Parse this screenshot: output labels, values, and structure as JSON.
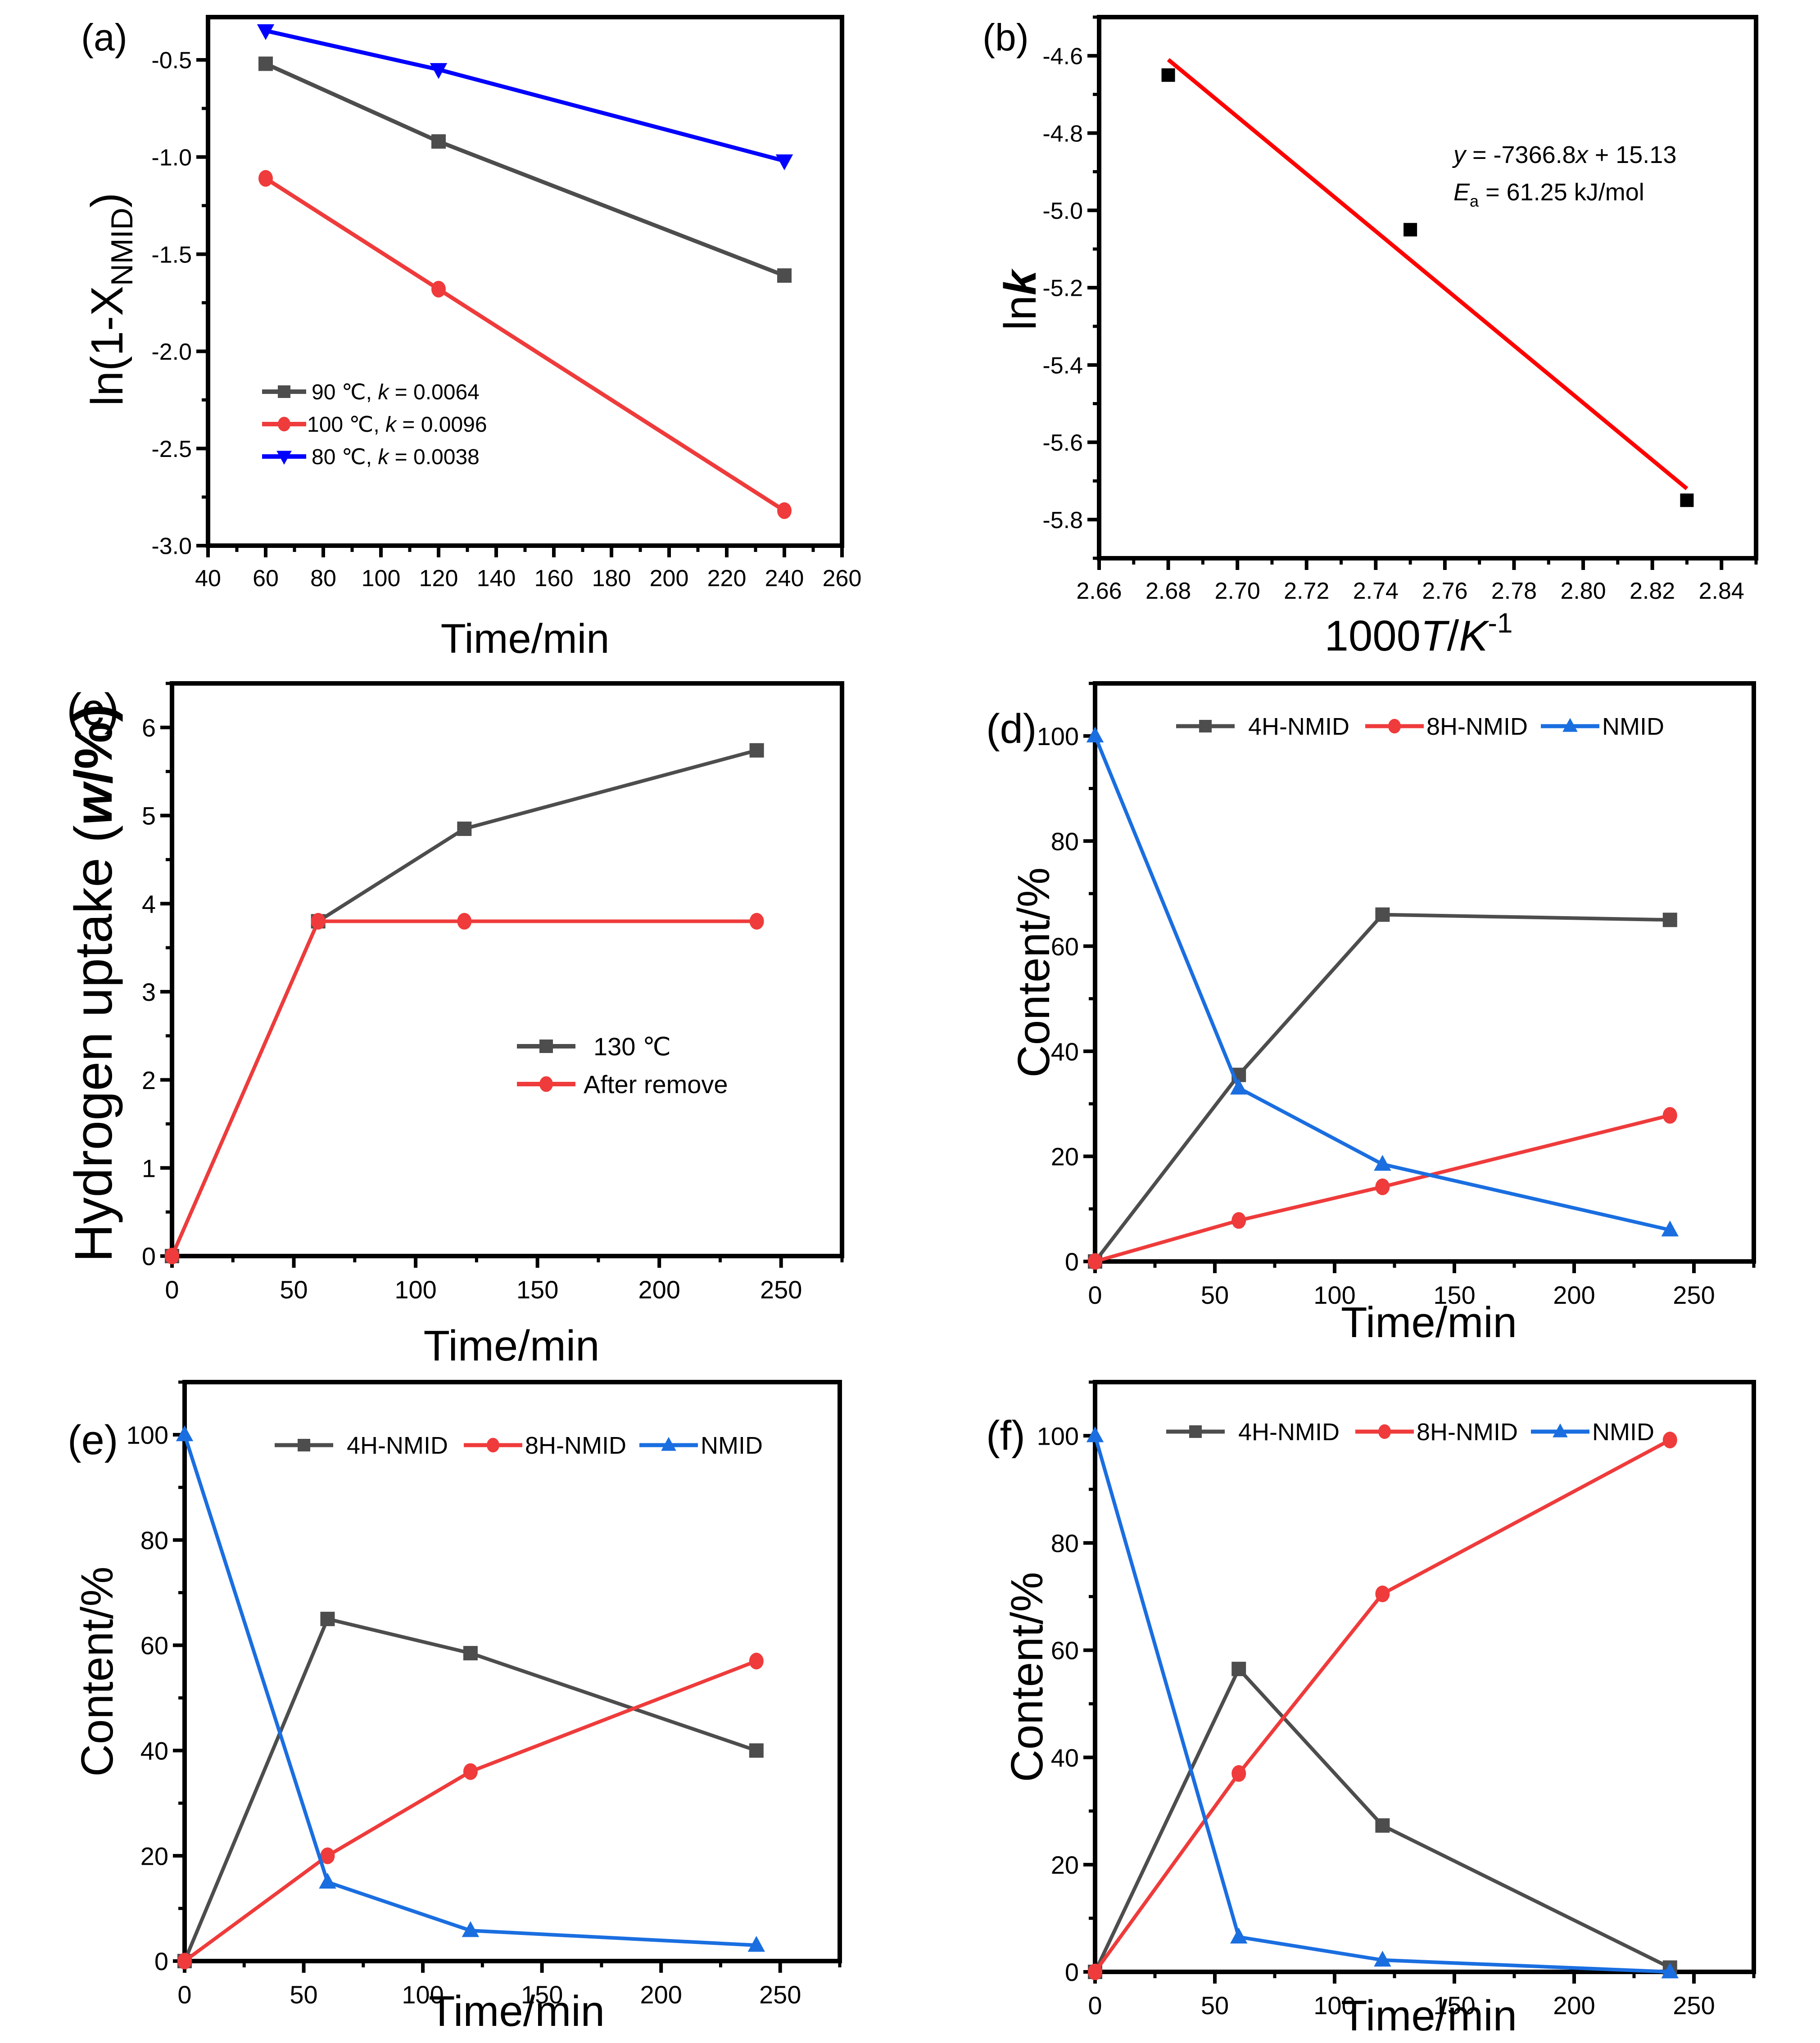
{
  "chart_data": [
    {
      "id": "a",
      "panel_label": "(a)",
      "type": "line",
      "title": "",
      "xlabel": "Time/min",
      "ylabel_main": "ln(1-X",
      "ylabel_sub": "NMID",
      "ylabel_tail": ")",
      "xlim": [
        40,
        260
      ],
      "ylim": [
        -3.0,
        -0.28
      ],
      "xticks": [
        40,
        60,
        80,
        100,
        120,
        140,
        160,
        180,
        200,
        220,
        240,
        260
      ],
      "xtick_labels": [
        "40",
        "60",
        "80",
        "100",
        "120",
        "140",
        "160",
        "180",
        "200",
        "220",
        "240",
        "260"
      ],
      "yticks": [
        -3.0,
        -2.5,
        -2.0,
        -1.5,
        -1.0,
        -0.5
      ],
      "ytick_labels": [
        "-3.0",
        "-2.5",
        "-2.0",
        "-1.5",
        "-1.0",
        "-0.5"
      ],
      "legend_position": "bottom-left",
      "series": [
        {
          "name": "90 ℃, k = 0.0064",
          "legend_pre": "90 ℃, ",
          "legend_k": "k",
          "legend_post": " = 0.0064",
          "color": "#4d4d4d",
          "marker": "square",
          "x": [
            60,
            120,
            240
          ],
          "y": [
            -0.52,
            -0.92,
            -1.61
          ]
        },
        {
          "name": "100 ℃, k = 0.0096",
          "legend_pre": "100 ℃, ",
          "legend_k": "k",
          "legend_post": " = 0.0096",
          "color": "#ef3b3b",
          "marker": "circle",
          "x": [
            60,
            120,
            240
          ],
          "y": [
            -1.11,
            -1.68,
            -2.82
          ]
        },
        {
          "name": "80 ℃, k = 0.0038",
          "legend_pre": "80 ℃, ",
          "legend_k": "k",
          "legend_post": " = 0.0038",
          "color": "#0000ff",
          "marker": "triangle-down",
          "x": [
            60,
            120,
            240
          ],
          "y": [
            -0.35,
            -0.55,
            -1.02
          ]
        }
      ]
    },
    {
      "id": "b",
      "panel_label": "(b)",
      "type": "scatter",
      "title": "",
      "xlabel_pre": "1000",
      "xlabel_T": "T",
      "xlabel_slash": "/",
      "xlabel_K": "K",
      "xlabel_exp": "-1",
      "ylabel_pre": "ln",
      "ylabel_k": "k",
      "xlim": [
        2.66,
        2.85
      ],
      "ylim": [
        -5.9,
        -4.5
      ],
      "xticks": [
        2.66,
        2.68,
        2.7,
        2.72,
        2.74,
        2.76,
        2.78,
        2.8,
        2.82,
        2.84
      ],
      "xtick_labels": [
        "2.66",
        "2.68",
        "2.70",
        "2.72",
        "2.74",
        "2.76",
        "2.78",
        "2.80",
        "2.82",
        "2.84"
      ],
      "yticks": [
        -5.8,
        -5.6,
        -5.4,
        -5.2,
        -5.0,
        -4.8,
        -4.6
      ],
      "ytick_labels": [
        "-5.8",
        "-5.6",
        "-5.4",
        "-5.2",
        "-5.0",
        "-4.8",
        "-4.6"
      ],
      "points": {
        "color": "#000000",
        "marker": "square",
        "x": [
          2.68,
          2.75,
          2.83
        ],
        "y": [
          -4.65,
          -5.05,
          -5.75
        ]
      },
      "fit_line": {
        "color": "#ff0000",
        "x": [
          2.68,
          2.83
        ],
        "y": [
          -4.61,
          -5.72
        ]
      },
      "annotation": {
        "eq_y": "y",
        "eq_mid": " = -7366.8",
        "eq_x": "x",
        "eq_tail": " + 15.13",
        "ea_E": "E",
        "ea_sub": "a",
        "ea_tail": " = 61.25 kJ/mol"
      }
    },
    {
      "id": "c",
      "panel_label": "(c)",
      "type": "line",
      "title": "",
      "xlabel": "Time/min",
      "ylabel_pre": "Hydrogen uptake (",
      "ylabel_w": "w",
      "ylabel_post": "/%)",
      "xlim": [
        0,
        275
      ],
      "ylim": [
        0,
        6.5
      ],
      "xticks": [
        0,
        50,
        100,
        150,
        200,
        250
      ],
      "xtick_labels": [
        "0",
        "50",
        "100",
        "150",
        "200",
        "250"
      ],
      "yticks": [
        0,
        1,
        2,
        3,
        4,
        5,
        6
      ],
      "ytick_labels": [
        "0",
        "1",
        "2",
        "3",
        "4",
        "5",
        "6"
      ],
      "legend_position": "center-right",
      "series": [
        {
          "name": "130 ℃",
          "color": "#4d4d4d",
          "marker": "square",
          "x": [
            0,
            60,
            120,
            240
          ],
          "y": [
            0,
            3.8,
            4.85,
            5.74
          ]
        },
        {
          "name": "After remove",
          "color": "#ef3b3b",
          "marker": "circle",
          "x": [
            0,
            60,
            120,
            240
          ],
          "y": [
            0,
            3.8,
            3.8,
            3.8
          ]
        }
      ]
    },
    {
      "id": "d",
      "panel_label": "(d)",
      "type": "line",
      "title": "",
      "xlabel": "Time/min",
      "ylabel": "Content/%",
      "xlim": [
        0,
        275
      ],
      "ylim": [
        0,
        110
      ],
      "xticks": [
        0,
        50,
        100,
        150,
        200,
        250
      ],
      "xtick_labels": [
        "0",
        "50",
        "100",
        "150",
        "200",
        "250"
      ],
      "yticks": [
        0,
        20,
        40,
        60,
        80,
        100
      ],
      "ytick_labels": [
        "0",
        "20",
        "40",
        "60",
        "80",
        "100"
      ],
      "legend_position": "top",
      "series": [
        {
          "name": "4H-NMID",
          "color": "#4d4d4d",
          "marker": "square",
          "x": [
            0,
            60,
            120,
            240
          ],
          "y": [
            0,
            35.5,
            66,
            65
          ]
        },
        {
          "name": "8H-NMID",
          "color": "#ef3b3b",
          "marker": "circle",
          "x": [
            0,
            60,
            120,
            240
          ],
          "y": [
            0,
            7.8,
            14.2,
            27.8
          ]
        },
        {
          "name": "NMID",
          "color": "#1a6ee0",
          "marker": "triangle-up",
          "x": [
            0,
            60,
            120,
            240
          ],
          "y": [
            100,
            33,
            18.5,
            6
          ]
        }
      ]
    },
    {
      "id": "e",
      "panel_label": "(e)",
      "type": "line",
      "title": "",
      "xlabel": "Time/min",
      "ylabel": "Content/%",
      "xlim": [
        0,
        275
      ],
      "ylim": [
        0,
        110
      ],
      "xticks": [
        0,
        50,
        100,
        150,
        200,
        250
      ],
      "xtick_labels": [
        "0",
        "50",
        "100",
        "150",
        "200",
        "250"
      ],
      "yticks": [
        0,
        20,
        40,
        60,
        80,
        100
      ],
      "ytick_labels": [
        "0",
        "20",
        "40",
        "60",
        "80",
        "100"
      ],
      "legend_position": "top",
      "series": [
        {
          "name": "4H-NMID",
          "color": "#4d4d4d",
          "marker": "square",
          "x": [
            0,
            60,
            120,
            240
          ],
          "y": [
            0,
            65,
            58.5,
            40
          ]
        },
        {
          "name": "8H-NMID",
          "color": "#ef3b3b",
          "marker": "circle",
          "x": [
            0,
            60,
            120,
            240
          ],
          "y": [
            0,
            20,
            36,
            57
          ]
        },
        {
          "name": "NMID",
          "color": "#1a6ee0",
          "marker": "triangle-up",
          "x": [
            0,
            60,
            120,
            240
          ],
          "y": [
            100,
            15,
            5.8,
            3
          ]
        }
      ]
    },
    {
      "id": "f",
      "panel_label": "(f)",
      "type": "line",
      "title": "",
      "xlabel": "Time/min",
      "ylabel": "Content/%",
      "xlim": [
        0,
        275
      ],
      "ylim": [
        0,
        110
      ],
      "xticks": [
        0,
        50,
        100,
        150,
        200,
        250
      ],
      "xtick_labels": [
        "0",
        "50",
        "100",
        "150",
        "200",
        "250"
      ],
      "yticks": [
        0,
        20,
        40,
        60,
        80,
        100
      ],
      "ytick_labels": [
        "0",
        "20",
        "40",
        "60",
        "80",
        "100"
      ],
      "legend_position": "top",
      "series": [
        {
          "name": "4H-NMID",
          "color": "#4d4d4d",
          "marker": "square",
          "x": [
            0,
            60,
            120,
            240
          ],
          "y": [
            0,
            56.5,
            27.3,
            0.8
          ]
        },
        {
          "name": "8H-NMID",
          "color": "#ef3b3b",
          "marker": "circle",
          "x": [
            0,
            60,
            120,
            240
          ],
          "y": [
            0,
            37,
            70.5,
            99.2
          ]
        },
        {
          "name": "NMID",
          "color": "#1a6ee0",
          "marker": "triangle-up",
          "x": [
            0,
            60,
            120,
            240
          ],
          "y": [
            100,
            6.5,
            2.2,
            0
          ]
        }
      ]
    }
  ]
}
